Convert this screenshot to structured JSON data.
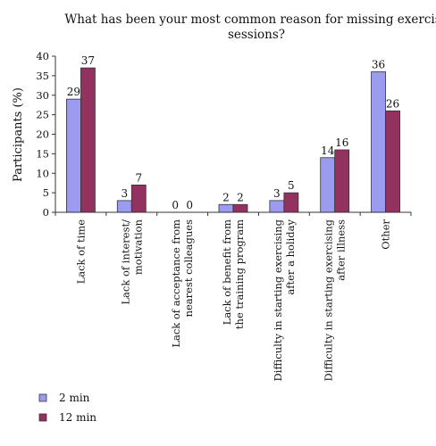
{
  "chart_data": {
    "type": "bar",
    "title": "What has been your most common reason for missing exercise sessions?",
    "title_lines": [
      "What has been your most common reason for missing exercise",
      "sessions?"
    ],
    "xlabel": "",
    "ylabel": "Participants (%)",
    "ylim": [
      0,
      40
    ],
    "yticks": [
      0,
      5,
      10,
      15,
      20,
      25,
      30,
      35,
      40
    ],
    "grid": false,
    "legend_position": "bottom-left",
    "categories": [
      [
        "Lack of time"
      ],
      [
        "Lack of interest/",
        "motivation"
      ],
      [
        "Lack of acceptance from",
        "nearest colleagues"
      ],
      [
        "Lack of benefit from",
        "the training program"
      ],
      [
        "Difficulty in starting exercising",
        "after a holiday"
      ],
      [
        "Difficulty in starting exercising",
        "after illness"
      ],
      [
        "Other"
      ]
    ],
    "series": [
      {
        "name": "2 min",
        "color": "#9b9bf0",
        "values": [
          29,
          3,
          0,
          2,
          3,
          14,
          36
        ]
      },
      {
        "name": "12 min",
        "color": "#93325f",
        "values": [
          37,
          7,
          0,
          2,
          5,
          16,
          26
        ]
      }
    ]
  }
}
